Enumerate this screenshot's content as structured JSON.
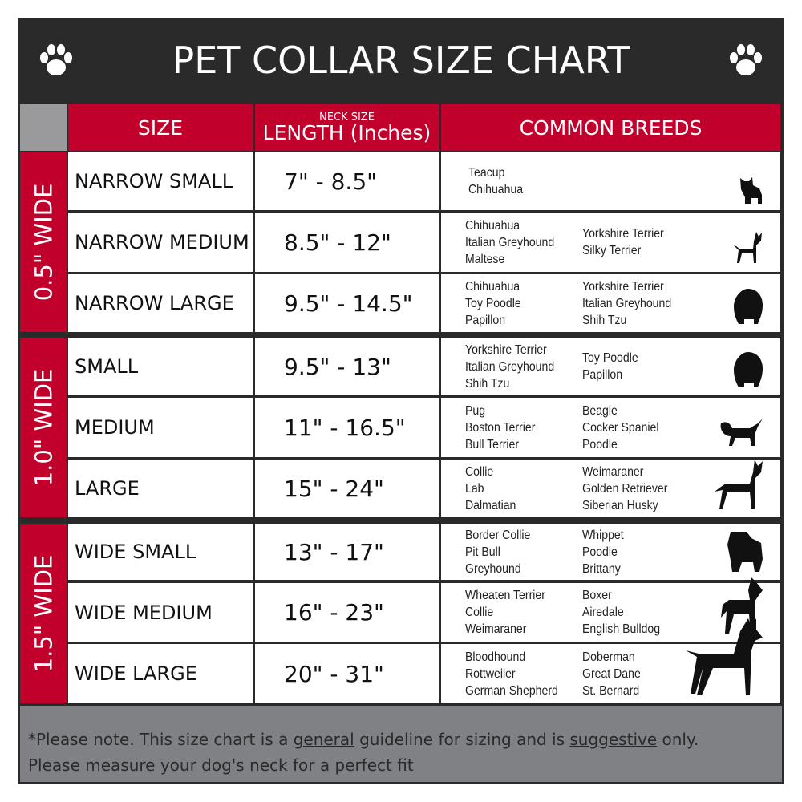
{
  "title": "PET COLLAR SIZE CHART",
  "headers": {
    "size": "SIZE",
    "length_small": "NECK SIZE",
    "length": "LENGTH (Inches)",
    "breeds": "COMMON BREEDS"
  },
  "groups": [
    "0.5\" WIDE",
    "1.0\" WIDE",
    "1.5\" WIDE"
  ],
  "rows": [
    {
      "size": "NARROW SMALL",
      "length": "7\" - 8.5\"",
      "col1": [
        "Teacup",
        "Chihuahua"
      ],
      "col2": [],
      "icon": "yorkie-silhouette-icon"
    },
    {
      "size": "NARROW MEDIUM",
      "length": "8.5\" - 12\"",
      "col1": [
        "Chihuahua",
        "Italian Greyhound",
        "Maltese"
      ],
      "col2": [
        "Yorkshire Terrier",
        "Silky Terrier"
      ],
      "icon": "chihuahua-silhouette-icon"
    },
    {
      "size": "NARROW LARGE",
      "length": "9.5\" - 14.5\"",
      "col1": [
        "Chihuahua",
        "Toy Poodle",
        "Papillon"
      ],
      "col2": [
        "Yorkshire Terrier",
        "Italian Greyhound",
        "Shih Tzu"
      ],
      "icon": "pomeranian-silhouette-icon"
    },
    {
      "size": "SMALL",
      "length": "9.5\" - 13\"",
      "col1": [
        "Yorkshire Terrier",
        "Italian Greyhound",
        "Shih Tzu"
      ],
      "col2": [
        "Toy Poodle",
        "Papillon"
      ],
      "icon": "pomeranian-silhouette-icon"
    },
    {
      "size": "MEDIUM",
      "length": "11\" - 16.5\"",
      "col1": [
        "Pug",
        "Boston Terrier",
        "Bull Terrier"
      ],
      "col2": [
        "Beagle",
        "Cocker Spaniel",
        "Poodle"
      ],
      "icon": "dachshund-silhouette-icon"
    },
    {
      "size": "LARGE",
      "length": "15\" - 24\"",
      "col1": [
        "Collie",
        "Lab",
        "Dalmatian"
      ],
      "col2": [
        "Weimaraner",
        "Golden Retriever",
        "Siberian Husky"
      ],
      "icon": "shepherd-silhouette-icon"
    },
    {
      "size": "WIDE SMALL",
      "length": "13\" - 17\"",
      "col1": [
        "Border Collie",
        "Pit Bull",
        "Greyhound"
      ],
      "col2": [
        "Whippet",
        "Poodle",
        "Brittany"
      ],
      "icon": "bulldog-silhouette-icon"
    },
    {
      "size": "WIDE MEDIUM",
      "length": "16\" - 23\"",
      "col1": [
        "Wheaten Terrier",
        "Collie",
        "Weimaraner"
      ],
      "col2": [
        "Boxer",
        "Airedale",
        "English Bulldog"
      ],
      "icon": "pitbull-silhouette-icon"
    },
    {
      "size": "WIDE LARGE",
      "length": "20\" - 31\"",
      "col1": [
        "Bloodhound",
        "Rottweiler",
        "German Shepherd"
      ],
      "col2": [
        "Doberman",
        "Great Dane",
        "St. Bernard"
      ],
      "icon": "doberman-silhouette-icon"
    }
  ],
  "footer": {
    "p1": "*Please note. This size chart is a ",
    "u1": "general",
    "p2": " guideline for sizing and is ",
    "u2": "suggestive",
    "p3": " only.",
    "line2": "Please measure your dog's neck for a perfect fit"
  },
  "colors": {
    "red": "#c1002b",
    "dark": "#2a2a2a",
    "gray": "#808184"
  }
}
